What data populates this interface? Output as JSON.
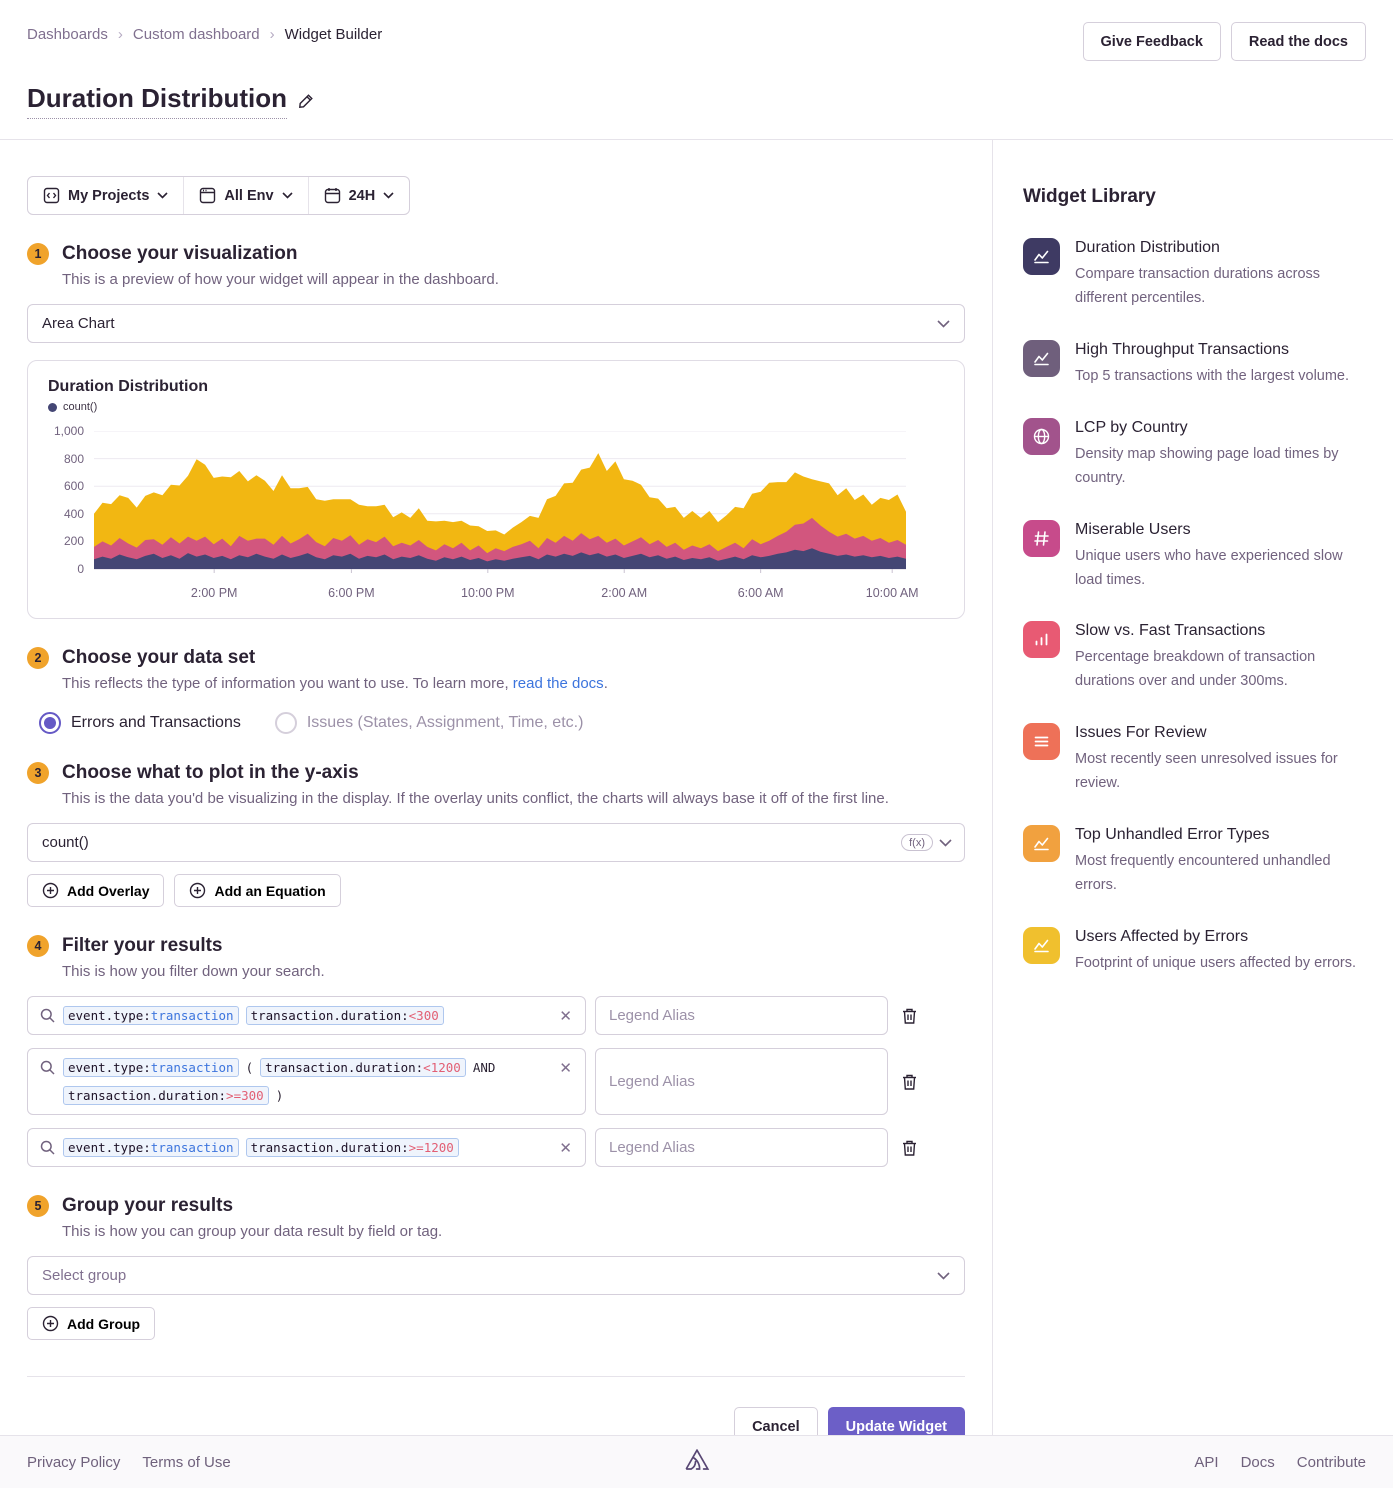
{
  "breadcrumb": {
    "items": [
      "Dashboards",
      "Custom dashboard",
      "Widget Builder"
    ]
  },
  "header": {
    "title": "Duration Distribution",
    "give_feedback_label": "Give Feedback",
    "read_docs_label": "Read the docs"
  },
  "filters": {
    "projects": "My Projects",
    "environment": "All Env",
    "time_range": "24H"
  },
  "steps": {
    "visualization": {
      "number": "1",
      "title": "Choose your visualization",
      "description": "This is a preview of how your widget will appear in the dashboard.",
      "display_type": "Area Chart"
    },
    "dataset": {
      "number": "2",
      "title": "Choose your data set",
      "description_prefix": "This reflects the type of information you want to use. To learn more, ",
      "description_link": "read the docs",
      "description_suffix": ".",
      "options": [
        {
          "label": "Errors and Transactions",
          "selected": true
        },
        {
          "label": "Issues (States, Assignment, Time, etc.)",
          "selected": false
        }
      ]
    },
    "yaxis": {
      "number": "3",
      "title": "Choose what to plot in the y-axis",
      "description": "This is the data you'd be visualizing in the display. If the overlay units conflict, the charts will always base it off of the first line.",
      "field_value": "count()",
      "fx_label": "f(x)",
      "add_overlay_label": "Add Overlay",
      "add_equation_label": "Add an Equation"
    },
    "filter": {
      "number": "4",
      "title": "Filter your results",
      "description": "This is how you filter down your search.",
      "legend_alias_placeholder": "Legend Alias",
      "rows": [
        {
          "segments": [
            {
              "type": "token",
              "key": "event.type:",
              "value": "transaction",
              "value_color": "blue"
            },
            {
              "type": "token",
              "key": "transaction.duration:",
              "value": "<300",
              "value_color": "red"
            }
          ]
        },
        {
          "segments": [
            {
              "type": "token",
              "key": "event.type:",
              "value": "transaction",
              "value_color": "blue"
            },
            {
              "type": "text",
              "value": "("
            },
            {
              "type": "token",
              "key": "transaction.duration:",
              "value": "<1200",
              "value_color": "red"
            },
            {
              "type": "text",
              "value": "AND"
            },
            {
              "type": "token",
              "key": "transaction.duration:",
              "value": ">=300",
              "value_color": "red"
            },
            {
              "type": "text",
              "value": ")"
            }
          ]
        },
        {
          "segments": [
            {
              "type": "token",
              "key": "event.type:",
              "value": "transaction",
              "value_color": "blue"
            },
            {
              "type": "token",
              "key": "transaction.duration:",
              "value": ">=1200",
              "value_color": "red"
            }
          ]
        }
      ]
    },
    "group": {
      "number": "5",
      "title": "Group your results",
      "description": "This is how you can group your data result by field or tag.",
      "select_placeholder": "Select group",
      "add_group_label": "Add Group"
    }
  },
  "actions": {
    "cancel_label": "Cancel",
    "submit_label": "Update Widget"
  },
  "widget_library": {
    "title": "Widget Library",
    "items": [
      {
        "name": "Duration Distribution",
        "description": "Compare transaction durations across different percentiles.",
        "color": "#3E3A63",
        "icon": "line-chart",
        "dotted": false
      },
      {
        "name": "High Throughput Transactions",
        "description": "Top 5 transactions with the largest volume.",
        "color": "#6F5F7C",
        "icon": "line-chart",
        "dotted": true
      },
      {
        "name": "LCP by Country",
        "description": "Density map showing page load times by country.",
        "color": "#A2538C",
        "icon": "globe",
        "dotted": false
      },
      {
        "name": "Miserable Users",
        "description": "Unique users who have experienced slow load times.",
        "color": "#C74B8B",
        "icon": "hash",
        "dotted": false
      },
      {
        "name": "Slow vs. Fast Transactions",
        "description": "Percentage breakdown of transaction durations over and under 300ms.",
        "color": "#E85A73",
        "icon": "bar-chart",
        "dotted": false
      },
      {
        "name": "Issues For Review",
        "description": "Most recently seen unresolved issues for review.",
        "color": "#EE7158",
        "icon": "list",
        "dotted": false
      },
      {
        "name": "Top Unhandled Error Types",
        "description": "Most frequently encountered unhandled errors.",
        "color": "#F1A13F",
        "icon": "line-chart",
        "dotted": false
      },
      {
        "name": "Users Affected by Errors",
        "description": "Footprint of unique users affected by errors.",
        "color": "#F0C02E",
        "icon": "line-chart",
        "dotted": false
      }
    ]
  },
  "footer": {
    "left_links": [
      "Privacy Policy",
      "Terms of Use"
    ],
    "right_links": [
      "API",
      "Docs",
      "Contribute"
    ]
  },
  "chart_data": {
    "type": "area",
    "stacked": true,
    "title": "Duration Distribution",
    "legend": [
      {
        "label": "count()",
        "color": "#444674"
      }
    ],
    "ylim": [
      0,
      1000
    ],
    "y_ticks": [
      0,
      200,
      400,
      600,
      800,
      1000
    ],
    "y_tick_labels": [
      "0",
      "200",
      "400",
      "600",
      "800",
      "1,000"
    ],
    "x_ticks": [
      {
        "label": "2:00 PM",
        "pos": 0.148
      },
      {
        "label": "6:00 PM",
        "pos": 0.317
      },
      {
        "label": "10:00 PM",
        "pos": 0.485
      },
      {
        "label": "2:00 AM",
        "pos": 0.653
      },
      {
        "label": "6:00 AM",
        "pos": 0.821
      },
      {
        "label": "10:00 AM",
        "pos": 0.983
      }
    ],
    "grid": true,
    "series": [
      {
        "name": "event.type:transaction transaction.duration:<300",
        "color": "#444674",
        "values": [
          70,
          90,
          75,
          105,
          85,
          70,
          95,
          110,
          80,
          100,
          75,
          115,
          90,
          105,
          80,
          95,
          70,
          100,
          85,
          110,
          90,
          75,
          105,
          80,
          95,
          115,
          85,
          70,
          100,
          90,
          110,
          75,
          95,
          85,
          105,
          70,
          90,
          80,
          100,
          75,
          60,
          85,
          70,
          90,
          65,
          80,
          55,
          70,
          60,
          75,
          85,
          95,
          70,
          105,
          90,
          110,
          95,
          120,
          100,
          115,
          90,
          105,
          80,
          95,
          110,
          85,
          100,
          75,
          90,
          65,
          80,
          70,
          85,
          60,
          75,
          90,
          70,
          100,
          85,
          95,
          110,
          120,
          140,
          130,
          150,
          125,
          110,
          95,
          105,
          90,
          100,
          85,
          95,
          80,
          90,
          75
        ]
      },
      {
        "name": "event.type:transaction (transaction.duration:<1200 AND transaction.duration:>=300)",
        "color": "#D2567E",
        "values": [
          90,
          110,
          95,
          120,
          100,
          85,
          115,
          105,
          95,
          130,
          110,
          120,
          115,
          130,
          100,
          125,
          95,
          140,
          120,
          110,
          130,
          100,
          135,
          105,
          120,
          140,
          110,
          95,
          125,
          115,
          135,
          100,
          120,
          110,
          130,
          95,
          100,
          90,
          110,
          85,
          75,
          95,
          80,
          100,
          70,
          90,
          60,
          80,
          70,
          85,
          95,
          110,
          80,
          120,
          100,
          130,
          110,
          140,
          115,
          125,
          100,
          115,
          90,
          105,
          120,
          95,
          110,
          85,
          100,
          75,
          90,
          80,
          95,
          70,
          85,
          100,
          80,
          115,
          95,
          110,
          130,
          150,
          180,
          200,
          220,
          190,
          160,
          140,
          150,
          130,
          140,
          120,
          130,
          110,
          120,
          100
        ]
      },
      {
        "name": "event.type:transaction transaction.duration:>=1200",
        "color": "#F2B712",
        "values": [
          240,
          280,
          300,
          310,
          330,
          290,
          320,
          340,
          360,
          380,
          420,
          440,
          590,
          520,
          480,
          450,
          500,
          470,
          430,
          460,
          420,
          390,
          440,
          400,
          370,
          340,
          310,
          330,
          280,
          300,
          260,
          290,
          240,
          260,
          230,
          210,
          220,
          200,
          230,
          190,
          210,
          170,
          190,
          160,
          180,
          140,
          160,
          130,
          120,
          140,
          160,
          180,
          220,
          280,
          340,
          380,
          420,
          460,
          520,
          600,
          520,
          560,
          480,
          440,
          380,
          340,
          300,
          280,
          260,
          230,
          250,
          220,
          240,
          210,
          230,
          260,
          290,
          330,
          380,
          420,
          390,
          360,
          380,
          340,
          280,
          320,
          350,
          300,
          330,
          280,
          300,
          260,
          290,
          310,
          330,
          240
        ]
      }
    ]
  }
}
